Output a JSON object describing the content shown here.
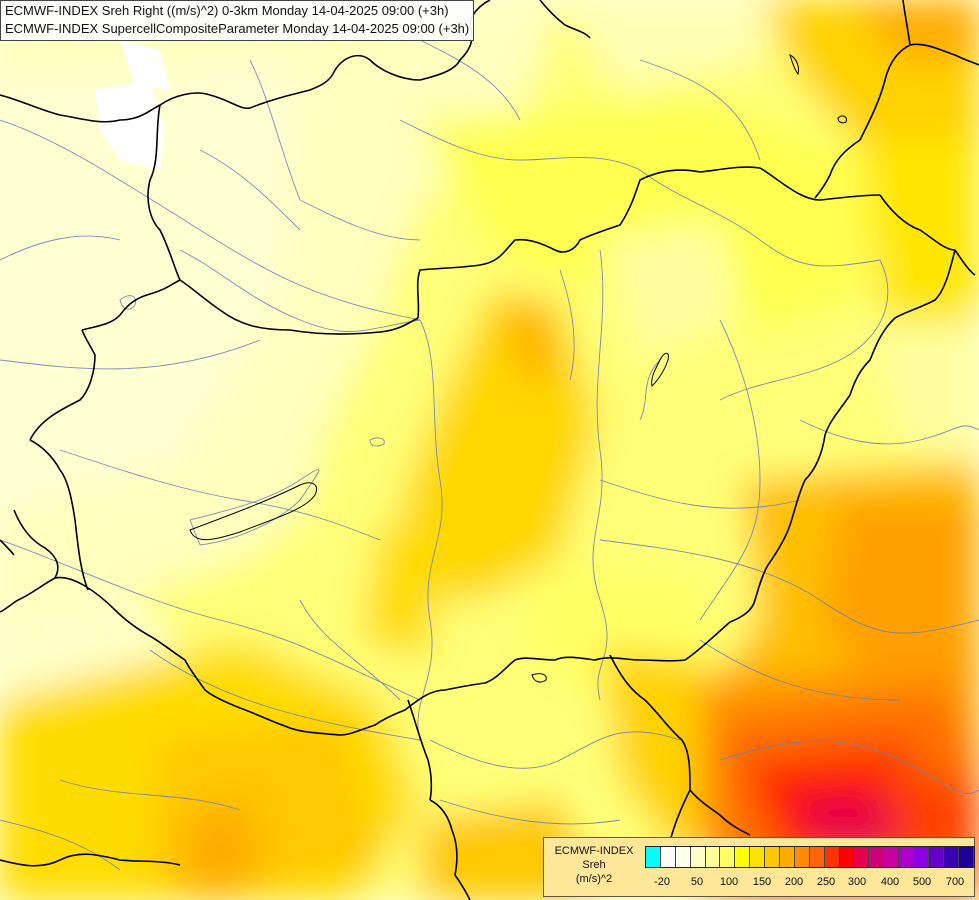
{
  "title": {
    "line1": "ECMWF-INDEX Sreh Right ((m/s)^2) 0-3km Monday 14-04-2025 09:00 (+3h)",
    "line2": "ECMWF-INDEX SupercellCompositeParameter Monday 14-04-2025 09:00 (+3h)"
  },
  "legend": {
    "title_line1": "ECMWF-INDEX",
    "title_line2": "Sreh",
    "title_line3": "(m/s)^2",
    "colors": [
      "#00ffff",
      "#ffffff",
      "#fffff0",
      "#ffffc8",
      "#ffff96",
      "#ffff64",
      "#ffff00",
      "#ffe100",
      "#ffc800",
      "#ffaa00",
      "#ff8c00",
      "#ff6400",
      "#ff3200",
      "#ff0000",
      "#e6004b",
      "#cd0078",
      "#c800a0",
      "#aa00c8",
      "#8c00e6",
      "#6400c8",
      "#3c00b4",
      "#1e0096"
    ],
    "labels": [
      "-20",
      "50",
      "100",
      "150",
      "200",
      "250",
      "300",
      "400",
      "500",
      "700"
    ]
  }
}
